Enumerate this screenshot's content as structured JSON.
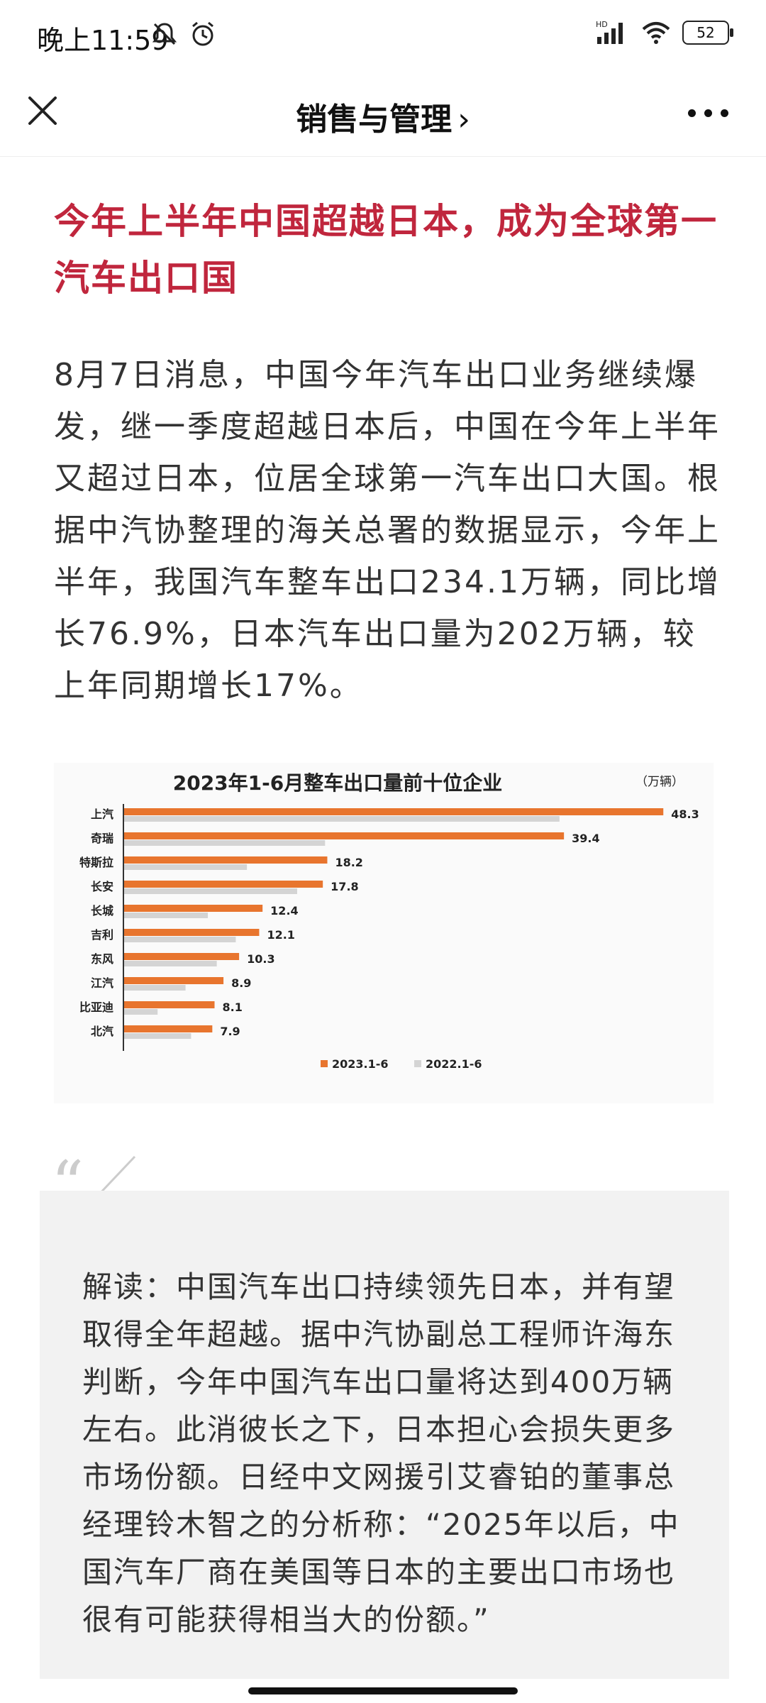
{
  "status_bar": {
    "time": "晚上11:59",
    "network": "HD",
    "battery": "52"
  },
  "nav": {
    "title": "销售与管理",
    "chevron": "›"
  },
  "article": {
    "headline": "今年上半年中国超越日本，成为全球第一汽车出口国",
    "body": "8月7日消息，中国今年汽车出口业务继续爆发，继一季度超越日本后，中国在今年上半年又超过日本，位居全球第一汽车出口大国。根据中汽协整理的海关总署的数据显示，今年上半年，我国汽车整车出口234.1万辆，同比增长76.9%，日本汽车出口量为202万辆，较上年同期增长17%。"
  },
  "chart_data": {
    "type": "bar",
    "orientation": "horizontal",
    "title": "2023年1-6月整车出口量前十位企业",
    "unit": "（万辆）",
    "categories": [
      "上汽",
      "奇瑞",
      "特斯拉",
      "长安",
      "长城",
      "吉利",
      "东风",
      "江汽",
      "比亚迪",
      "北汽"
    ],
    "series": [
      {
        "name": "2023.1-6",
        "color": "#e8752e",
        "values": [
          48.3,
          39.4,
          18.2,
          17.8,
          12.4,
          12.1,
          10.3,
          8.9,
          8.1,
          7.9
        ]
      },
      {
        "name": "2022.1-6",
        "color": "#d4d4d4",
        "values": [
          39.0,
          18.0,
          11.0,
          15.5,
          7.5,
          10.0,
          8.3,
          5.5,
          3.0,
          6.0
        ]
      }
    ],
    "value_labels_series": "2023.1-6",
    "xlim": [
      0,
      50
    ],
    "grid": false,
    "legend": "bottom"
  },
  "quote": {
    "text": "解读：中国汽车出口持续领先日本，并有望取得全年超越。据中汽协副总工程师许海东判断，今年中国汽车出口量将达到400万辆左右。此消彼长之下，日本担心会损失更多市场份额。日经中文网援引艾睿铂的董事总经理铃木智之的分析称：“2025年以后，中国汽车厂商在美国等日本的主要出口市场也很有可能获得相当大的份额。”"
  },
  "icons": {
    "close": "close-icon",
    "more": "more-icon",
    "mute": "mute-icon",
    "alarm": "alarm-icon",
    "signal": "signal-icon",
    "wifi": "wifi-icon",
    "battery": "battery-icon"
  }
}
